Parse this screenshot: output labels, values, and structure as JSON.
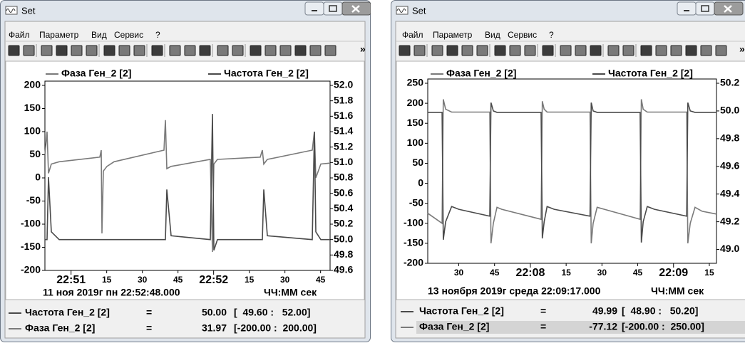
{
  "windows": [
    {
      "title": "Set",
      "menu": [
        "Файл",
        "Параметр",
        "Вид",
        "Сервис",
        "?"
      ],
      "toolbar_overflow": "»",
      "chart_data": {
        "type": "line",
        "x": [
          -11,
          -10.1,
          -9.5,
          -8.3,
          -5,
          12.1,
          12.7,
          13,
          13.6,
          15.1,
          18.1,
          39.1,
          39.7,
          40.3,
          42.1,
          58.6,
          59.5,
          60.1,
          61.6,
          79.6,
          80.5,
          81.1,
          82.6,
          101.5,
          102.4,
          103,
          105.1,
          109
        ],
        "xlim": [
          -11,
          109
        ],
        "xticks": [
          {
            "value": 0,
            "label": "22:51"
          },
          15,
          30,
          45,
          {
            "value": 60,
            "label": "22:52"
          },
          {
            "value": 75,
            "label": "15"
          },
          {
            "value": 90,
            "label": "30"
          },
          {
            "value": 105,
            "label": "45"
          }
        ],
        "ylim": [
          -200,
          200
        ],
        "yticks": [
          200,
          150,
          100,
          50,
          0,
          -50,
          -100,
          -150,
          -200
        ],
        "y2lim": [
          49.6,
          52
        ],
        "y2ticks": [
          {
            "value": 52,
            "label": "52.0"
          },
          51.8,
          51.6,
          51.4,
          51.2,
          {
            "value": 51,
            "label": "51.0"
          },
          50.8,
          50.6,
          50.4,
          50.2,
          {
            "value": 50,
            "label": "50.0"
          },
          49.8,
          49.6
        ],
        "series": [
          {
            "name": "Фаза Ген_2 [2]",
            "color": "#7a7a7a",
            "values": [
              50,
              100,
              10,
              30,
              35,
              45,
              60,
              -120,
              15,
              25,
              35,
              60,
              125,
              20,
              25,
              40,
              -160,
              30,
              40,
              45,
              60,
              30,
              40,
              60,
              100,
              0,
              30,
              32
            ]
          },
          {
            "name": "Частота Ген_2 [2]",
            "color": "#4a4a4a",
            "axis": "y2",
            "values": [
              50,
              50,
              50.81,
              50.1,
              50,
              50,
              50,
              50,
              50,
              50,
              50,
              50,
              50,
              50.65,
              50.05,
              50,
              51.63,
              49.86,
              50,
              50,
              50,
              50.65,
              50.05,
              50,
              51.4,
              50.1,
              50,
              50
            ]
          }
        ]
      },
      "timestamp": "11 ноя 2019г пн 22:52:48.000",
      "time_format": "ЧЧ:ММ сек",
      "readout": [
        {
          "name": "Частота Ген_2 [2]",
          "sign": "=",
          "value": "50.00",
          "range": "[  49.60 :   52.00]"
        },
        {
          "name": "Фаза Ген_2 [2]",
          "sign": "=",
          "value": "31.97",
          "range": "[-200.00 :  200.00]"
        }
      ]
    },
    {
      "title": "Set",
      "menu": [
        "Файл",
        "Параметр",
        "Вид",
        "Сервис",
        "?"
      ],
      "toolbar_overflow": "»",
      "chart_data": {
        "type": "line",
        "x": [
          -43,
          -37,
          -36.5,
          -35.5,
          -33,
          -30,
          -17,
          -16.5,
          -15.5,
          -14,
          -12,
          4.5,
          5,
          5.8,
          7,
          10,
          25,
          25.5,
          26.3,
          28,
          31,
          46,
          46.5,
          47.3,
          49,
          52,
          65.5,
          66,
          67,
          69,
          72,
          78
        ],
        "xlim": [
          -43,
          78
        ],
        "xticks": [
          {
            "value": -30,
            "label": "30"
          },
          {
            "value": -15,
            "label": "45"
          },
          {
            "value": 0,
            "label": "22:08"
          },
          15,
          30,
          45,
          {
            "value": 60,
            "label": "22:09"
          },
          {
            "value": 75,
            "label": "15"
          }
        ],
        "ylim": [
          -200,
          250
        ],
        "yticks": [
          250,
          200,
          150,
          100,
          50,
          0,
          -50,
          -100,
          -150,
          -200
        ],
        "y2lim": [
          48.9,
          50.2
        ],
        "y2ticks": [
          50.2,
          {
            "value": 50,
            "label": "50.0"
          },
          49.8,
          49.6,
          49.4,
          49.2,
          {
            "value": 49,
            "label": "49.0"
          }
        ],
        "series": [
          {
            "name": "Фаза Ген_2 [2]",
            "color": "#7a7a7a",
            "values": [
              -75,
              -100,
              210,
              185,
              178,
              178,
              178,
              -150,
              -100,
              -60,
              -65,
              -90,
              205,
              185,
              178,
              178,
              178,
              -150,
              -100,
              -60,
              -65,
              -90,
              210,
              185,
              178,
              178,
              178,
              -150,
              -100,
              -60,
              -70,
              -77
            ]
          },
          {
            "name": "Частота Ген_2 [2]",
            "color": "#4a4a4a",
            "axis": "y2",
            "values": [
              49.99,
              49.99,
              49.07,
              49.2,
              49.31,
              49.29,
              49.24,
              50.06,
              50,
              49.99,
              49.99,
              49.99,
              49.08,
              49.2,
              49.31,
              49.29,
              49.24,
              50.06,
              50,
              49.99,
              49.99,
              49.99,
              49.05,
              49.2,
              49.31,
              49.29,
              49.24,
              50.06,
              50,
              49.99,
              49.99,
              49.99
            ]
          }
        ]
      },
      "timestamp": "13 ноября 2019г среда 22:09:17.000",
      "time_format": "ЧЧ:ММ сек",
      "readout": [
        {
          "name": "Частота Ген_2 [2]",
          "sign": "=",
          "value": "49.99",
          "range": "[  48.90 :   50.20]"
        },
        {
          "name": "Фаза Ген_2 [2]",
          "sign": "=",
          "value": "-77.12",
          "range": "[-200.00 :  250.00]",
          "selected": true
        }
      ]
    }
  ]
}
